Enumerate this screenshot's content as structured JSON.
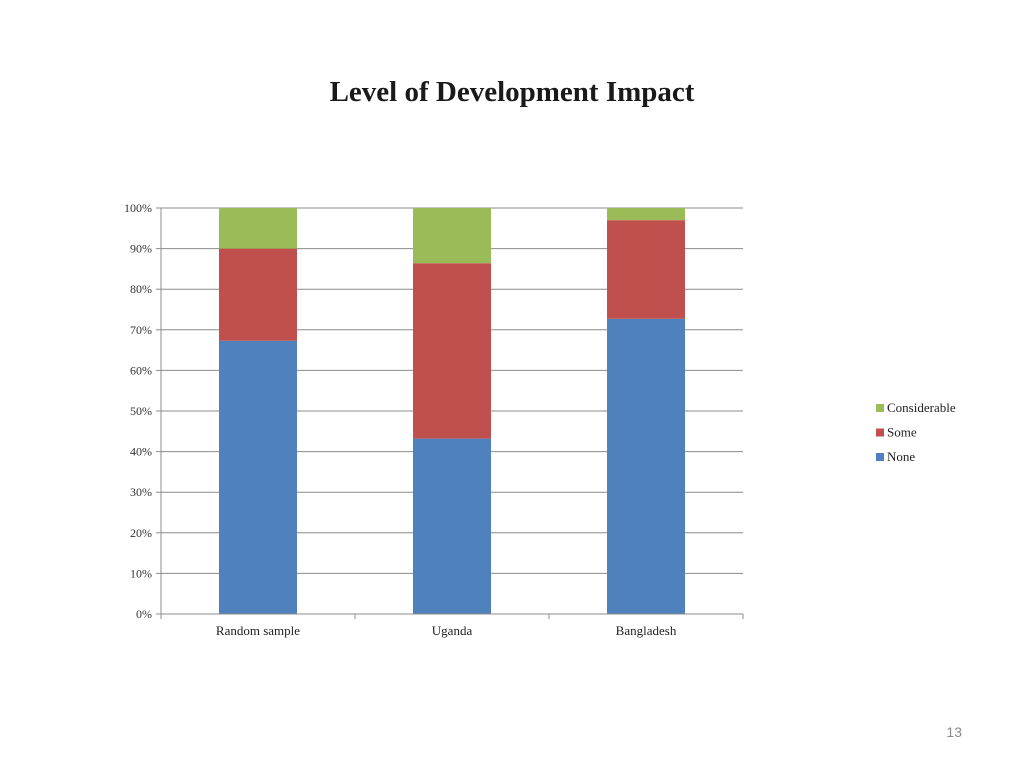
{
  "slide": {
    "page_number": "13"
  },
  "chart_data": {
    "type": "bar",
    "stacked": true,
    "title": "Level of Development Impact",
    "xlabel": "",
    "ylabel": "",
    "categories": [
      "Random sample",
      "Uganda",
      "Bangladesh"
    ],
    "series": [
      {
        "name": "None",
        "color": "#4F81BD",
        "values": [
          67.3,
          43.2,
          72.7
        ]
      },
      {
        "name": "Some",
        "color": "#C0504D",
        "values": [
          22.7,
          43.2,
          24.3
        ]
      },
      {
        "name": "Considerable",
        "color": "#9BBB59",
        "values": [
          10.0,
          13.6,
          3.0
        ]
      }
    ],
    "ylim": [
      0,
      100
    ],
    "yticks": [
      "0%",
      "10%",
      "20%",
      "30%",
      "40%",
      "50%",
      "60%",
      "70%",
      "80%",
      "90%",
      "100%"
    ],
    "grid": true,
    "legend": {
      "position": "right",
      "order": [
        "Considerable",
        "Some",
        "None"
      ]
    }
  }
}
